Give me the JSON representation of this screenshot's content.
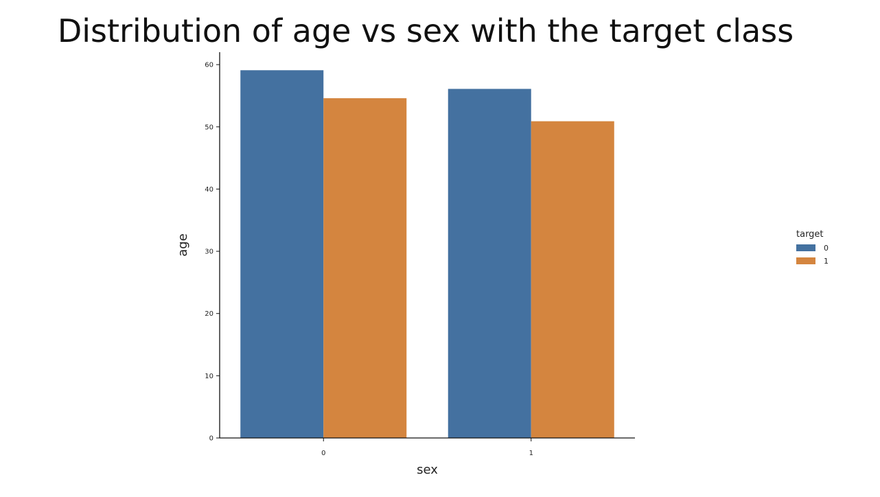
{
  "chart_data": {
    "type": "bar",
    "title": "Distribution of age vs sex with the target class",
    "xlabel": "sex",
    "ylabel": "age",
    "categories": [
      "0",
      "1"
    ],
    "series": [
      {
        "name": "0",
        "color": "#4471a0",
        "values": [
          59.1,
          56.1
        ]
      },
      {
        "name": "1",
        "color": "#d4853f",
        "values": [
          54.6,
          50.9
        ]
      }
    ],
    "ylim": [
      0,
      62
    ],
    "yticks": [
      0,
      10,
      20,
      30,
      40,
      50,
      60
    ],
    "legend": {
      "title": "target",
      "placement": "right"
    },
    "grid": false
  }
}
